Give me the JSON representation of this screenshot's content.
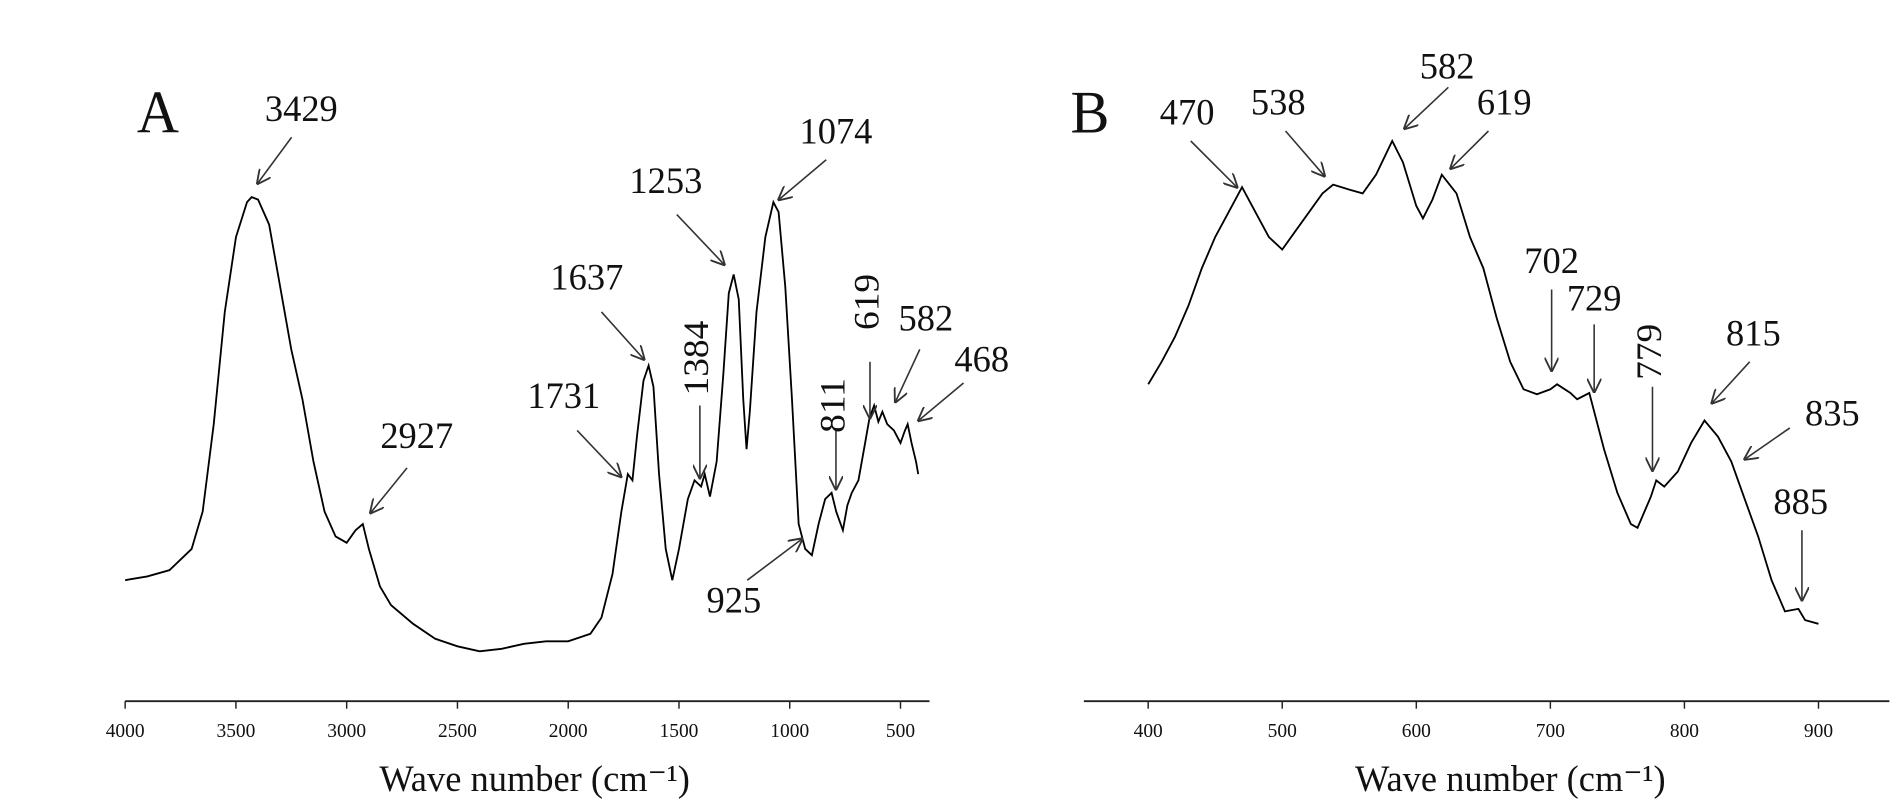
{
  "chart_data": [
    {
      "type": "line",
      "panel": "A",
      "xlabel": "Wave number (cm⁻¹)",
      "color": "#000000",
      "xlim": [
        4000,
        380
      ],
      "ylim": [
        0,
        500
      ],
      "xticks": [
        4000,
        3500,
        3000,
        2500,
        2000,
        1500,
        1000,
        500
      ],
      "x": [
        4000,
        3900,
        3800,
        3700,
        3650,
        3600,
        3550,
        3500,
        3450,
        3429,
        3400,
        3350,
        3300,
        3250,
        3200,
        3150,
        3100,
        3050,
        3000,
        2960,
        2927,
        2900,
        2850,
        2800,
        2700,
        2600,
        2500,
        2400,
        2300,
        2200,
        2100,
        2000,
        1900,
        1850,
        1800,
        1760,
        1731,
        1710,
        1690,
        1660,
        1637,
        1615,
        1590,
        1560,
        1530,
        1500,
        1460,
        1430,
        1400,
        1384,
        1360,
        1330,
        1300,
        1275,
        1253,
        1230,
        1210,
        1195,
        1180,
        1150,
        1110,
        1074,
        1050,
        1020,
        990,
        960,
        930,
        900,
        870,
        840,
        811,
        790,
        760,
        740,
        720,
        690,
        660,
        640,
        619,
        600,
        582,
        560,
        530,
        500,
        480,
        468,
        450,
        430,
        420
      ],
      "values": [
        95,
        98,
        103,
        120,
        150,
        220,
        310,
        370,
        398,
        402,
        400,
        380,
        330,
        280,
        240,
        190,
        150,
        130,
        125,
        135,
        140,
        120,
        90,
        75,
        60,
        48,
        42,
        38,
        40,
        44,
        46,
        46,
        52,
        65,
        100,
        150,
        180,
        175,
        210,
        255,
        267,
        250,
        180,
        120,
        95,
        120,
        160,
        175,
        170,
        180,
        162,
        190,
        260,
        325,
        340,
        320,
        240,
        200,
        230,
        310,
        370,
        398,
        390,
        330,
        240,
        140,
        120,
        115,
        140,
        160,
        165,
        150,
        135,
        155,
        165,
        175,
        205,
        225,
        235,
        222,
        230,
        220,
        215,
        205,
        215,
        220,
        205,
        190,
        180
      ],
      "annotations": [
        3429,
        2927,
        1731,
        1637,
        1384,
        1253,
        1074,
        925,
        811,
        619,
        582,
        468
      ]
    },
    {
      "type": "line",
      "panel": "B",
      "xlabel": "Wave number (cm⁻¹)",
      "color": "#000000",
      "xlim": [
        352,
        952
      ],
      "ylim": [
        0,
        500
      ],
      "xticks": [
        400,
        500,
        600,
        700,
        800,
        900
      ],
      "x": [
        400,
        410,
        420,
        430,
        440,
        450,
        460,
        470,
        480,
        490,
        500,
        510,
        520,
        530,
        538,
        550,
        560,
        570,
        582,
        590,
        600,
        605,
        612,
        619,
        630,
        640,
        650,
        660,
        670,
        680,
        690,
        700,
        705,
        715,
        720,
        729,
        740,
        750,
        760,
        765,
        775,
        779,
        785,
        795,
        805,
        815,
        825,
        835,
        845,
        855,
        865,
        875,
        885,
        890,
        900
      ],
      "values": [
        252,
        270,
        290,
        315,
        345,
        370,
        390,
        410,
        390,
        370,
        360,
        375,
        390,
        405,
        412,
        408,
        405,
        420,
        447,
        430,
        395,
        385,
        400,
        420,
        405,
        370,
        345,
        305,
        270,
        248,
        244,
        248,
        252,
        245,
        240,
        245,
        200,
        165,
        140,
        137,
        162,
        175,
        170,
        182,
        205,
        223,
        210,
        190,
        160,
        130,
        95,
        70,
        72,
        63,
        60
      ],
      "annotations": [
        470,
        538,
        582,
        619,
        702,
        729,
        779,
        815,
        835,
        885
      ]
    }
  ]
}
